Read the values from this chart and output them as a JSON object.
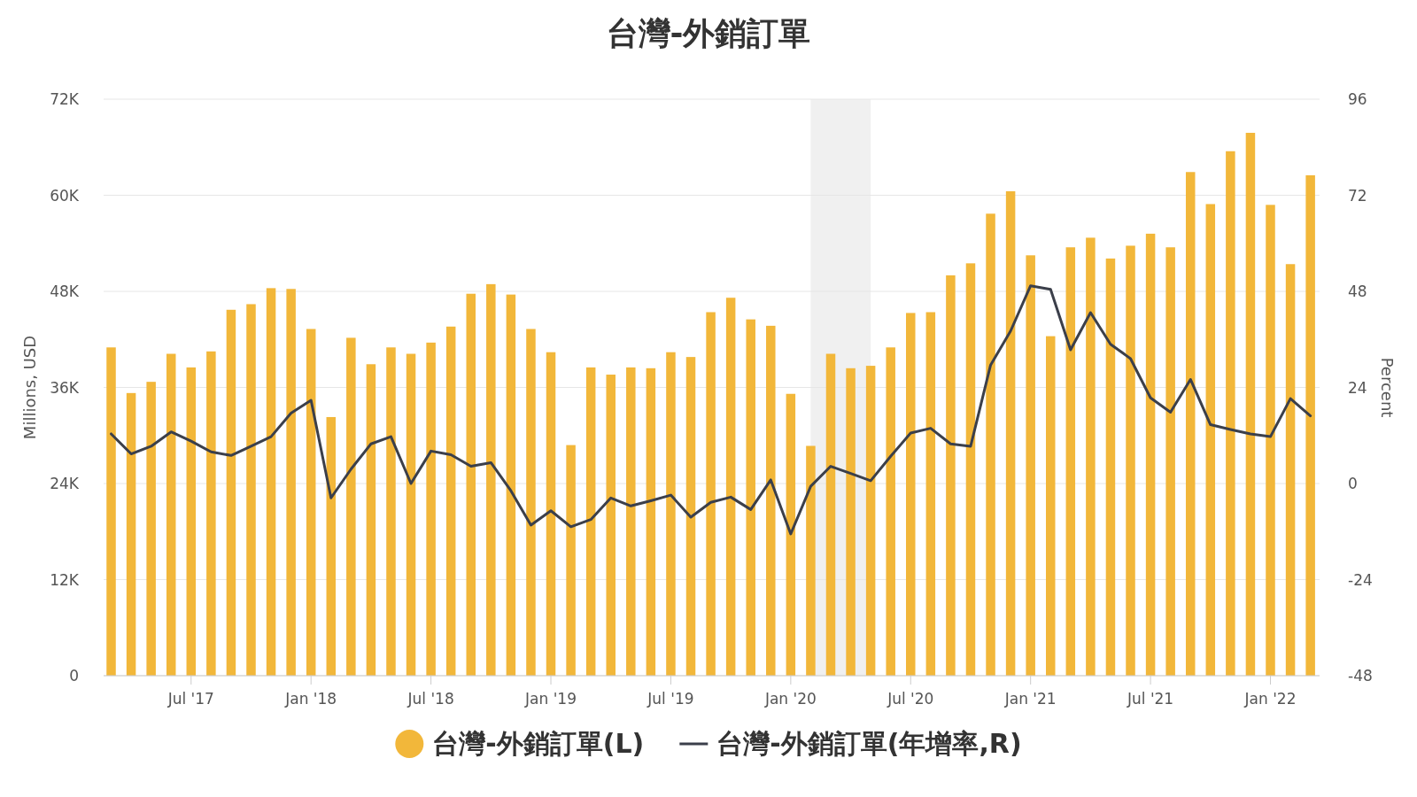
{
  "chart_data": {
    "type": "bar",
    "title": "台灣-外銷訂單",
    "ylabel": "Millions, USD",
    "y2label": "Percent",
    "x": [
      "2017-03",
      "2017-04",
      "2017-05",
      "2017-06",
      "2017-07",
      "2017-08",
      "2017-09",
      "2017-10",
      "2017-11",
      "2017-12",
      "2018-01",
      "2018-02",
      "2018-03",
      "2018-04",
      "2018-05",
      "2018-06",
      "2018-07",
      "2018-08",
      "2018-09",
      "2018-10",
      "2018-11",
      "2018-12",
      "2019-01",
      "2019-02",
      "2019-03",
      "2019-04",
      "2019-05",
      "2019-06",
      "2019-07",
      "2019-08",
      "2019-09",
      "2019-10",
      "2019-11",
      "2019-12",
      "2020-01",
      "2020-02",
      "2020-03",
      "2020-04",
      "2020-05",
      "2020-06",
      "2020-07",
      "2020-08",
      "2020-09",
      "2020-10",
      "2020-11",
      "2020-12",
      "2021-01",
      "2021-02",
      "2021-03",
      "2021-04",
      "2021-05",
      "2021-06",
      "2021-07",
      "2021-08",
      "2021-09",
      "2021-10",
      "2021-11",
      "2021-12",
      "2022-01",
      "2022-02",
      "2022-03"
    ],
    "series": [
      {
        "name": "台灣-外銷訂單(L)",
        "color": "#f2b73a",
        "values": [
          41000,
          35300,
          36700,
          40200,
          38500,
          40500,
          45700,
          46400,
          48400,
          48300,
          43300,
          32300,
          42200,
          38900,
          41000,
          40200,
          41600,
          43600,
          47700,
          48900,
          47600,
          43300,
          40400,
          28800,
          38500,
          37600,
          38500,
          38400,
          40400,
          39800,
          45400,
          47200,
          44500,
          43700,
          35200,
          28700,
          40200,
          38400,
          38700,
          41000,
          45300,
          45400,
          50000,
          51500,
          57700,
          60500,
          52500,
          42400,
          53500,
          54700,
          52100,
          53700,
          55200,
          53500,
          62900,
          58900,
          65500,
          67800,
          58800,
          51400,
          62500
        ]
      },
      {
        "name": "台灣-外銷訂單(年增率,R)",
        "type": "line",
        "axis": "y2",
        "color": "#3b3f4a",
        "values": [
          12.4,
          7.4,
          9.3,
          12.9,
          10.6,
          7.9,
          7.0,
          9.3,
          11.7,
          17.6,
          20.8,
          -3.6,
          3.6,
          9.9,
          11.7,
          0,
          8.1,
          7.2,
          4.3,
          5.2,
          -1.8,
          -10.4,
          -6.8,
          -10.8,
          -9.0,
          -3.6,
          -5.6,
          -4.3,
          -2.9,
          -8.4,
          -4.7,
          -3.4,
          -6.5,
          0.9,
          -12.6,
          -0.7,
          4.3,
          2.5,
          0.7,
          6.8,
          12.6,
          13.8,
          9.9,
          9.3,
          29.6,
          38.1,
          49.4,
          48.5,
          33.4,
          42.7,
          34.8,
          31.2,
          21.4,
          17.8,
          26.0,
          14.7,
          13.5,
          12.4,
          11.7,
          21.2,
          16.9
        ]
      }
    ],
    "xlim": [
      "2017-02-20",
      "2022-03-15"
    ],
    "xticks": [
      {
        "value": "2017-07",
        "label": "Jul '17"
      },
      {
        "value": "2018-01",
        "label": "Jan '18"
      },
      {
        "value": "2018-07",
        "label": "Jul '18"
      },
      {
        "value": "2019-01",
        "label": "Jan '19"
      },
      {
        "value": "2019-07",
        "label": "Jul '19"
      },
      {
        "value": "2020-01",
        "label": "Jan '20"
      },
      {
        "value": "2020-07",
        "label": "Jul '20"
      },
      {
        "value": "2021-01",
        "label": "Jan '21"
      },
      {
        "value": "2021-07",
        "label": "Jul '21"
      },
      {
        "value": "2022-01",
        "label": "Jan '22"
      }
    ],
    "ylim": [
      0,
      72000
    ],
    "yticks": [
      0,
      {
        "value": 12000,
        "label": "12K"
      },
      {
        "value": 24000,
        "label": "24K"
      },
      {
        "value": 36000,
        "label": "36K"
      },
      {
        "value": 48000,
        "label": "48K"
      },
      {
        "value": 60000,
        "label": "60K"
      },
      {
        "value": 72000,
        "label": "72K"
      }
    ],
    "y2lim": [
      -48,
      96
    ],
    "y2ticks": [
      -48,
      -24,
      0,
      24,
      48,
      72,
      96
    ],
    "bands": [
      {
        "axis": "x",
        "from": "2020-02",
        "to": "2020-05",
        "color": "#f0f0f0"
      }
    ],
    "grid": "y",
    "legend": "bottom"
  }
}
